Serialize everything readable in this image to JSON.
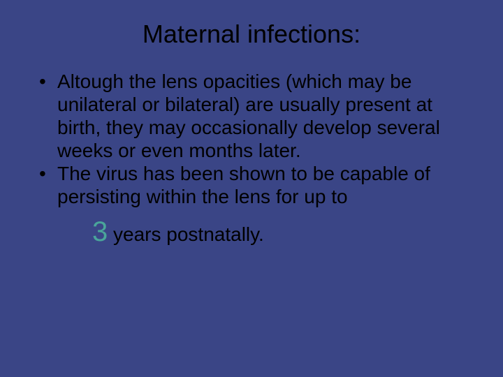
{
  "slide": {
    "background_color": "#3a4586",
    "title": {
      "text": "Maternal infections:",
      "color": "#000000",
      "fontsize": 36,
      "align": "center",
      "weight": "normal"
    },
    "bullets": [
      {
        "text": "Altough the lens opacities (which may be unilateral or bilateral) are usually present at birth, they may occasionally develop several weeks or even months later.",
        "color": "#000000",
        "fontsize": 28
      },
      {
        "text": "The virus has been shown to be capable of persisting within the lens for up to",
        "color": "#000000",
        "fontsize": 28
      }
    ],
    "trailing": {
      "emphasis": {
        "text": "3",
        "color": "#4aa59a",
        "fontsize": 40
      },
      "rest": " years postnatally.",
      "color": "#000000",
      "fontsize": 28
    }
  }
}
